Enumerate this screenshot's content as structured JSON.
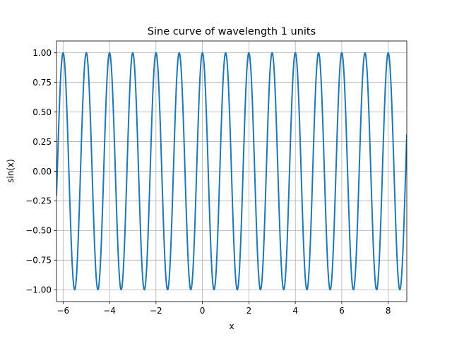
{
  "chart_data": {
    "type": "line",
    "title": "Sine curve of wavelength 1 units",
    "xlabel": "x",
    "ylabel": "sin(x)",
    "xlim": [
      -6.2832,
      8.8
    ],
    "ylim": [
      -1.1,
      1.1
    ],
    "grid": true,
    "function": "y = sin(2*pi*x + pi/2)",
    "wavelength": 1,
    "x_range": [
      -6.2832,
      8.8
    ],
    "sample_count": 1500,
    "series": [
      {
        "name": "sin(x)",
        "color": "#1f77b4",
        "peaks_x": [
          -6,
          -5,
          -4,
          -3,
          -2,
          -1,
          0,
          1,
          2,
          3,
          4,
          5,
          6,
          7,
          8
        ],
        "peak_y": 1.0,
        "troughs_x": [
          -5.5,
          -4.5,
          -3.5,
          -2.5,
          -1.5,
          -0.5,
          0.5,
          1.5,
          2.5,
          3.5,
          4.5,
          5.5,
          6.5,
          7.5,
          8.5
        ],
        "trough_y": -1.0
      }
    ],
    "x_ticks": [
      -6,
      -4,
      -2,
      0,
      2,
      4,
      6,
      8
    ],
    "x_tick_labels": [
      "−6",
      "−4",
      "−2",
      "0",
      "2",
      "4",
      "6",
      "8"
    ],
    "y_ticks": [
      -1.0,
      -0.75,
      -0.5,
      -0.25,
      0.0,
      0.25,
      0.5,
      0.75,
      1.0
    ],
    "y_tick_labels": [
      "−1.00",
      "−0.75",
      "−0.50",
      "−0.25",
      "0.00",
      "0.25",
      "0.50",
      "0.75",
      "1.00"
    ]
  }
}
